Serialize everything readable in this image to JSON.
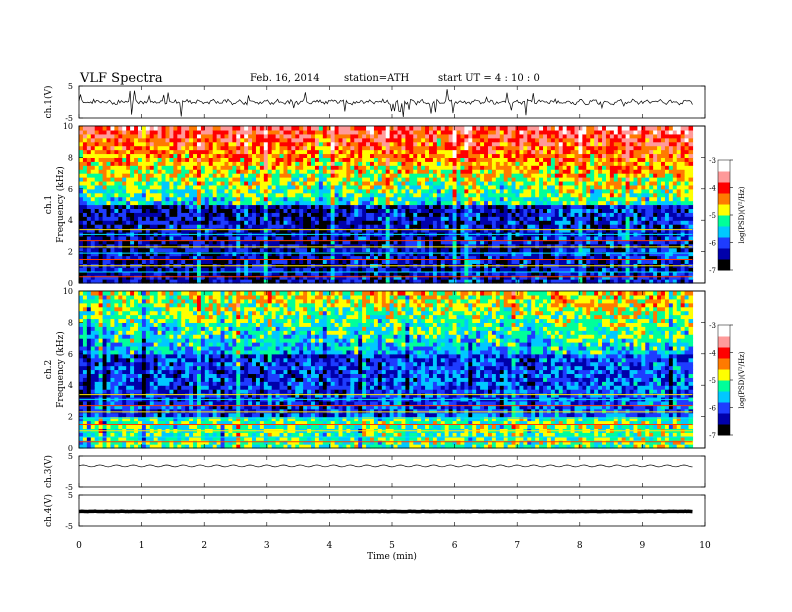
{
  "header": {
    "title": "VLF Spectra",
    "date": "Feb. 16, 2014",
    "station": "station=ATH",
    "start": "start  UT  =   4 : 10 : 0"
  },
  "colors": {
    "colormap": [
      "#000000",
      "#0000aa",
      "#1e3cff",
      "#00c8ff",
      "#00ff9a",
      "#ffff00",
      "#ff7a00",
      "#ff0000",
      "#ff9a9a",
      "#ffffff"
    ],
    "trace": "#000000"
  },
  "chart_data": {
    "type": "heatmap",
    "x": {
      "label": "Time  (min)",
      "range": [
        0,
        10
      ],
      "ticks": [
        "0",
        "1",
        "2",
        "3",
        "4",
        "5",
        "6",
        "7",
        "8",
        "9",
        "10"
      ],
      "data_end": 9.8
    },
    "panels": [
      {
        "kind": "waveform",
        "ylabel": "ch.1(V)",
        "yrange": [
          -5,
          5
        ],
        "yticks": [
          "5",
          "-5"
        ],
        "mean": 0,
        "amplitude": 1.2
      },
      {
        "kind": "spectrogram",
        "channel": "ch.1",
        "ylabel": "Frequency  (kHz)",
        "yrange": [
          0,
          10
        ],
        "yticks": [
          "0",
          "2",
          "4",
          "6",
          "8",
          "10"
        ],
        "colorbar": {
          "label": "log(PSD)(V²/Hz)",
          "range": [
            -7,
            -3
          ],
          "ticks": [
            "-3",
            "-4",
            "-5",
            "-6",
            "-7"
          ]
        }
      },
      {
        "kind": "spectrogram",
        "channel": "ch.2",
        "ylabel": "Frequency  (kHz)",
        "yrange": [
          0,
          10
        ],
        "yticks": [
          "0",
          "2",
          "4",
          "6",
          "8",
          "10"
        ],
        "colorbar": {
          "label": "log(PSD)(V²/Hz)",
          "range": [
            -7,
            -3
          ],
          "ticks": [
            "-3",
            "-4",
            "-5",
            "-6",
            "-7"
          ]
        }
      },
      {
        "kind": "waveform",
        "ylabel": "ch.3(V)",
        "yrange": [
          -5,
          5
        ],
        "yticks": [
          "5",
          "-5"
        ],
        "mean": 1.8,
        "amplitude": 0.3
      },
      {
        "kind": "waveform",
        "ylabel": "ch.4(V)",
        "yrange": [
          -5,
          5
        ],
        "yticks": [
          "5",
          "-5"
        ],
        "mean": -0.3,
        "amplitude": 0.1
      }
    ],
    "spectra": {
      "ch1_band_kHz": {
        "quiet_range": [
          0,
          5
        ],
        "active_range": [
          5,
          10
        ],
        "level_active": -3.5,
        "level_quiet": -6.5
      },
      "ch2_band_kHz": {
        "quiet_range": [
          2,
          6
        ],
        "active_range": [
          6,
          10
        ],
        "level_active": -4.5,
        "level_quiet": -6.2
      },
      "lines_kHz": [
        0.4,
        0.7,
        1.1,
        1.5,
        1.9,
        2.3,
        2.7,
        3.1,
        3.4
      ],
      "segments_min": [
        4.4,
        7.4,
        8.7
      ]
    }
  }
}
